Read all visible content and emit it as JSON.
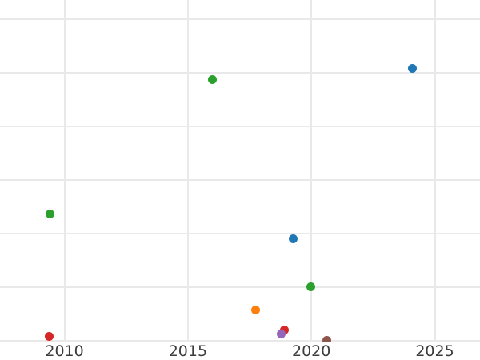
{
  "style": {
    "background": "#ffffff",
    "gridline_color": "#e9e9e9",
    "tick_label_color": "#3d3d3d"
  },
  "chart_data": {
    "type": "scatter",
    "title": "",
    "xlabel": "",
    "ylabel": "",
    "grid": true,
    "legend_position": "none",
    "x_ticks": [
      2010,
      2015,
      2020,
      2025
    ],
    "x_tick_labels": [
      "2010",
      "2015",
      "2020",
      "2025"
    ],
    "y_gridlines": [
      0,
      1,
      2,
      3,
      4,
      5,
      6
    ],
    "y_tick_labels_visible": false,
    "viewport": {
      "x_min": 2007.39,
      "x_max": 2026.83,
      "y_min": -0.015,
      "y_max": 6.358
    },
    "marker_diameter_px": 11,
    "series": [
      {
        "name": "blue",
        "color": "#1f77b4",
        "points": [
          {
            "x": 2019.25,
            "y": 1.9
          },
          {
            "x": 2024.08,
            "y": 5.08
          }
        ]
      },
      {
        "name": "orange",
        "color": "#ff7f0e",
        "points": [
          {
            "x": 2017.73,
            "y": 0.57
          }
        ]
      },
      {
        "name": "green",
        "color": "#2ca02c",
        "points": [
          {
            "x": 2009.43,
            "y": 2.37
          },
          {
            "x": 2015.99,
            "y": 4.88
          },
          {
            "x": 2019.98,
            "y": 1.0
          }
        ]
      },
      {
        "name": "red",
        "color": "#d62728",
        "points": [
          {
            "x": 2009.37,
            "y": 0.08
          },
          {
            "x": 2018.91,
            "y": 0.2
          }
        ]
      },
      {
        "name": "purple",
        "color": "#9467bd",
        "points": [
          {
            "x": 2018.78,
            "y": 0.13
          }
        ]
      },
      {
        "name": "brown",
        "color": "#8c564b",
        "points": [
          {
            "x": 2020.64,
            "y": 0.0
          }
        ]
      }
    ]
  }
}
